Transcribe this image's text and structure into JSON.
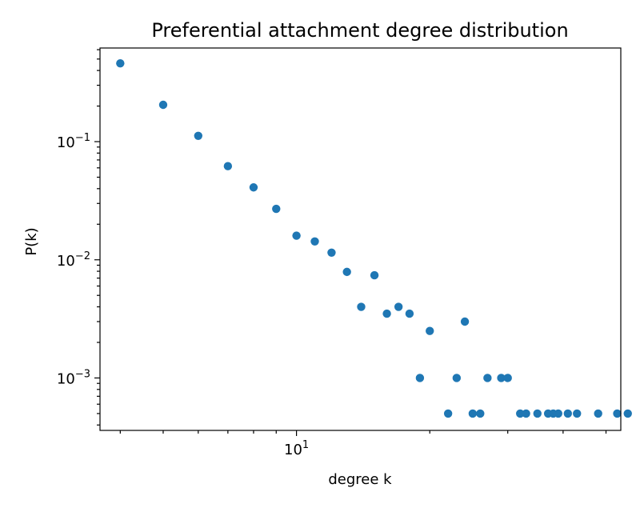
{
  "chart_data": {
    "type": "scatter",
    "title": "Preferential attachment degree distribution",
    "xlabel": "degree k",
    "ylabel": "P(k)",
    "xscale": "log",
    "yscale": "log",
    "xlim": [
      3.6,
      54
    ],
    "ylim": [
      0.00036,
      0.62
    ],
    "grid": false,
    "marker_color": "#1f77b4",
    "x_ticks": [
      {
        "base": "10",
        "exp": "1",
        "value": 10
      }
    ],
    "y_ticks": [
      {
        "base": "10",
        "exp": "−3",
        "value": 0.001
      },
      {
        "base": "10",
        "exp": "−2",
        "value": 0.01
      },
      {
        "base": "10",
        "exp": "−1",
        "value": 0.1
      }
    ],
    "points": [
      {
        "x": 4,
        "y": 0.46
      },
      {
        "x": 5,
        "y": 0.205
      },
      {
        "x": 6,
        "y": 0.112
      },
      {
        "x": 7,
        "y": 0.062
      },
      {
        "x": 8,
        "y": 0.041
      },
      {
        "x": 9,
        "y": 0.027
      },
      {
        "x": 10,
        "y": 0.016
      },
      {
        "x": 11,
        "y": 0.0143
      },
      {
        "x": 12,
        "y": 0.0115
      },
      {
        "x": 13,
        "y": 0.0079
      },
      {
        "x": 14,
        "y": 0.004
      },
      {
        "x": 15,
        "y": 0.0074
      },
      {
        "x": 16,
        "y": 0.0035
      },
      {
        "x": 17,
        "y": 0.004
      },
      {
        "x": 18,
        "y": 0.0035
      },
      {
        "x": 19,
        "y": 0.001
      },
      {
        "x": 20,
        "y": 0.0025
      },
      {
        "x": 22,
        "y": 0.0005
      },
      {
        "x": 23,
        "y": 0.001
      },
      {
        "x": 24,
        "y": 0.003
      },
      {
        "x": 25,
        "y": 0.0005
      },
      {
        "x": 26,
        "y": 0.0005
      },
      {
        "x": 27,
        "y": 0.001
      },
      {
        "x": 29,
        "y": 0.001
      },
      {
        "x": 30,
        "y": 0.001
      },
      {
        "x": 32,
        "y": 0.0005
      },
      {
        "x": 33,
        "y": 0.0005
      },
      {
        "x": 35,
        "y": 0.0005
      },
      {
        "x": 37,
        "y": 0.0005
      },
      {
        "x": 38,
        "y": 0.0005
      },
      {
        "x": 39,
        "y": 0.0005
      },
      {
        "x": 41,
        "y": 0.0005
      },
      {
        "x": 43,
        "y": 0.0005
      },
      {
        "x": 48,
        "y": 0.0005
      },
      {
        "x": 53,
        "y": 0.0005
      },
      {
        "x": 56,
        "y": 0.0005
      }
    ]
  }
}
